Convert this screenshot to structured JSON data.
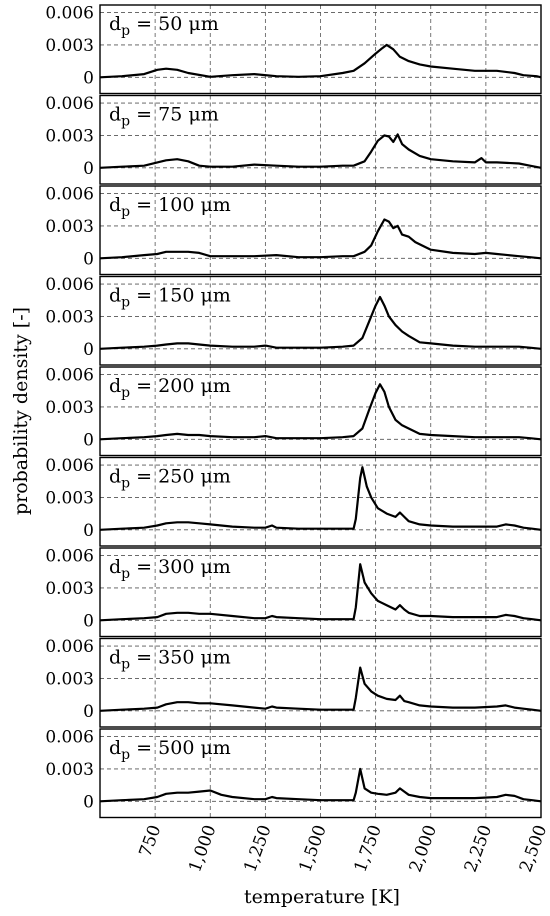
{
  "chart_data": {
    "type": "line",
    "ylabel": "probability density [-]",
    "xlabel": "temperature [K]",
    "xlim": [
      500,
      2500
    ],
    "ylim": [
      -0.0015,
      0.0067
    ],
    "x_ticks": [
      750,
      1000,
      1250,
      1500,
      1750,
      2000,
      2250,
      2500
    ],
    "x_tick_labels": [
      "750",
      "1,000",
      "1,250",
      "1,500",
      "1,750",
      "2,000",
      "2,250",
      "2,500"
    ],
    "y_ticks": [
      0,
      0.003,
      0.006
    ],
    "y_tick_labels": [
      "0",
      "0.003",
      "0.006"
    ],
    "grid": true,
    "panels": [
      {
        "label_main": "d",
        "label_sub": "p",
        "label_rest": " = 50 μm",
        "x": [
          500,
          600,
          700,
          760,
          800,
          850,
          900,
          1000,
          1100,
          1200,
          1300,
          1400,
          1500,
          1600,
          1650,
          1700,
          1750,
          1780,
          1800,
          1830,
          1860,
          1900,
          1950,
          2000,
          2100,
          2200,
          2300,
          2380,
          2420,
          2480,
          2500
        ],
        "y": [
          0,
          0.0001,
          0.0003,
          0.0007,
          0.0008,
          0.0007,
          0.0004,
          5e-05,
          0.0002,
          0.0003,
          0.0001,
          5e-05,
          0.0001,
          0.0004,
          0.0006,
          0.0013,
          0.0022,
          0.0027,
          0.003,
          0.0026,
          0.0019,
          0.0015,
          0.0012,
          0.001,
          0.0008,
          0.0006,
          0.0006,
          0.0004,
          0.0002,
          0.0001,
          0
        ]
      },
      {
        "label_main": "d",
        "label_sub": "p",
        "label_rest": " = 75 μm",
        "x": [
          500,
          600,
          700,
          760,
          800,
          850,
          900,
          950,
          1000,
          1100,
          1200,
          1300,
          1400,
          1500,
          1600,
          1650,
          1700,
          1730,
          1760,
          1790,
          1810,
          1830,
          1850,
          1870,
          1900,
          1950,
          2000,
          2100,
          2200,
          2230,
          2250,
          2300,
          2400,
          2450,
          2500
        ],
        "y": [
          0,
          0.0001,
          0.0002,
          0.0005,
          0.0007,
          0.0008,
          0.0006,
          0.0002,
          0.0001,
          0.0001,
          0.0003,
          0.0002,
          0.0001,
          0.0001,
          0.0002,
          0.0002,
          0.0006,
          0.0015,
          0.0025,
          0.003,
          0.0029,
          0.0024,
          0.0031,
          0.0022,
          0.0017,
          0.0011,
          0.0008,
          0.0006,
          0.0005,
          0.0009,
          0.0005,
          0.0005,
          0.0004,
          0.0002,
          0
        ]
      },
      {
        "label_main": "d",
        "label_sub": "p",
        "label_rest": " = 100 μm",
        "x": [
          500,
          600,
          700,
          760,
          800,
          850,
          900,
          950,
          1000,
          1100,
          1200,
          1300,
          1400,
          1500,
          1600,
          1650,
          1700,
          1730,
          1760,
          1790,
          1810,
          1830,
          1850,
          1870,
          1900,
          1930,
          1960,
          2000,
          2100,
          2200,
          2250,
          2300,
          2400,
          2450,
          2500
        ],
        "y": [
          0,
          0.0001,
          0.0003,
          0.0004,
          0.0006,
          0.0006,
          0.0006,
          0.0005,
          0.0002,
          0.0002,
          0.0002,
          0.0003,
          0.0001,
          0.0001,
          0.0002,
          0.0002,
          0.0006,
          0.0012,
          0.0025,
          0.0036,
          0.0034,
          0.0028,
          0.003,
          0.0022,
          0.002,
          0.0015,
          0.0012,
          0.0008,
          0.0005,
          0.0004,
          0.0005,
          0.0004,
          0.0002,
          0.0001,
          0
        ]
      },
      {
        "label_main": "d",
        "label_sub": "p",
        "label_rest": " = 150 μm",
        "x": [
          500,
          600,
          700,
          760,
          800,
          850,
          900,
          950,
          1000,
          1100,
          1200,
          1250,
          1300,
          1400,
          1500,
          1600,
          1650,
          1690,
          1720,
          1750,
          1770,
          1790,
          1810,
          1840,
          1870,
          1900,
          1950,
          2000,
          2100,
          2200,
          2300,
          2400,
          2450,
          2500
        ],
        "y": [
          0,
          0.0001,
          0.0002,
          0.0003,
          0.0004,
          0.0005,
          0.0005,
          0.0004,
          0.0003,
          0.0002,
          0.0002,
          0.0003,
          0.0001,
          0.0001,
          0.0001,
          0.0002,
          0.0003,
          0.001,
          0.0025,
          0.004,
          0.0048,
          0.004,
          0.003,
          0.0022,
          0.0016,
          0.0012,
          0.0006,
          0.0005,
          0.0003,
          0.0002,
          0.0002,
          0.0002,
          0.0001,
          0
        ]
      },
      {
        "label_main": "d",
        "label_sub": "p",
        "label_rest": " = 200 μm",
        "x": [
          500,
          600,
          700,
          760,
          800,
          850,
          900,
          950,
          1000,
          1100,
          1200,
          1250,
          1300,
          1400,
          1500,
          1600,
          1650,
          1690,
          1720,
          1750,
          1770,
          1790,
          1810,
          1840,
          1870,
          1900,
          1950,
          2000,
          2100,
          2200,
          2300,
          2400,
          2450,
          2500
        ],
        "y": [
          0,
          0.0001,
          0.0002,
          0.0003,
          0.0004,
          0.0005,
          0.0004,
          0.0004,
          0.0003,
          0.0002,
          0.0002,
          0.0003,
          0.0001,
          0.0001,
          0.0001,
          0.0002,
          0.0003,
          0.001,
          0.0027,
          0.0043,
          0.0051,
          0.0044,
          0.003,
          0.0018,
          0.0013,
          0.001,
          0.0005,
          0.0004,
          0.0003,
          0.0002,
          0.0002,
          0.0002,
          0.0001,
          0
        ]
      },
      {
        "label_main": "d",
        "label_sub": "p",
        "label_rest": " = 250 μm",
        "x": [
          500,
          600,
          700,
          760,
          800,
          850,
          900,
          950,
          1000,
          1100,
          1200,
          1250,
          1280,
          1300,
          1400,
          1500,
          1600,
          1650,
          1660,
          1680,
          1690,
          1710,
          1730,
          1760,
          1800,
          1840,
          1860,
          1880,
          1900,
          1950,
          2000,
          2100,
          2200,
          2300,
          2340,
          2380,
          2420,
          2460,
          2500
        ],
        "y": [
          0,
          0.0001,
          0.0002,
          0.0004,
          0.0006,
          0.0007,
          0.0007,
          0.0006,
          0.0005,
          0.0003,
          0.0002,
          0.0002,
          0.0004,
          0.0002,
          0.0001,
          0.0001,
          0.0001,
          0.0001,
          0.001,
          0.0048,
          0.0058,
          0.004,
          0.003,
          0.002,
          0.0015,
          0.0012,
          0.0016,
          0.0012,
          0.0008,
          0.0005,
          0.0004,
          0.0003,
          0.0003,
          0.0003,
          0.0005,
          0.0004,
          0.0002,
          0.0001,
          0
        ]
      },
      {
        "label_main": "d",
        "label_sub": "p",
        "label_rest": " = 300 μm",
        "x": [
          500,
          600,
          700,
          760,
          800,
          850,
          900,
          950,
          1000,
          1100,
          1200,
          1250,
          1280,
          1300,
          1400,
          1500,
          1600,
          1650,
          1660,
          1680,
          1700,
          1730,
          1760,
          1800,
          1840,
          1860,
          1880,
          1900,
          1950,
          2000,
          2100,
          2200,
          2300,
          2340,
          2380,
          2420,
          2460,
          2500
        ],
        "y": [
          0,
          0.0001,
          0.0002,
          0.0003,
          0.0006,
          0.0007,
          0.0007,
          0.0006,
          0.0006,
          0.0004,
          0.0002,
          0.0002,
          0.0004,
          0.0003,
          0.0002,
          0.0001,
          0.0001,
          0.0001,
          0.0012,
          0.0052,
          0.0035,
          0.0025,
          0.0018,
          0.0014,
          0.001,
          0.0014,
          0.001,
          0.0007,
          0.0004,
          0.0004,
          0.0003,
          0.0003,
          0.0003,
          0.0005,
          0.0004,
          0.0002,
          0.0001,
          0
        ]
      },
      {
        "label_main": "d",
        "label_sub": "p",
        "label_rest": " = 350 μm",
        "x": [
          500,
          600,
          700,
          760,
          800,
          850,
          900,
          950,
          1000,
          1100,
          1200,
          1250,
          1280,
          1300,
          1400,
          1500,
          1600,
          1650,
          1660,
          1680,
          1700,
          1730,
          1760,
          1800,
          1840,
          1860,
          1880,
          1900,
          1950,
          2000,
          2100,
          2200,
          2300,
          2340,
          2380,
          2420,
          2460,
          2500
        ],
        "y": [
          0,
          0.0001,
          0.0002,
          0.0003,
          0.0006,
          0.0008,
          0.0008,
          0.0007,
          0.0007,
          0.0005,
          0.0003,
          0.0002,
          0.0004,
          0.0003,
          0.0002,
          0.0001,
          0.0001,
          0.0001,
          0.0012,
          0.004,
          0.0025,
          0.0018,
          0.0014,
          0.0011,
          0.001,
          0.0014,
          0.0009,
          0.0008,
          0.0005,
          0.0004,
          0.0003,
          0.0003,
          0.0004,
          0.0005,
          0.0003,
          0.0002,
          0.0001,
          0
        ]
      },
      {
        "label_main": "d",
        "label_sub": "p",
        "label_rest": " = 500 μm",
        "x": [
          500,
          600,
          700,
          760,
          800,
          850,
          900,
          950,
          1000,
          1050,
          1100,
          1200,
          1250,
          1280,
          1300,
          1400,
          1500,
          1600,
          1650,
          1660,
          1680,
          1700,
          1730,
          1760,
          1800,
          1840,
          1860,
          1880,
          1900,
          1950,
          2000,
          2100,
          2200,
          2300,
          2340,
          2380,
          2420,
          2460,
          2500
        ],
        "y": [
          0,
          0.0001,
          0.0002,
          0.0004,
          0.0007,
          0.0008,
          0.0008,
          0.0009,
          0.001,
          0.0006,
          0.0004,
          0.0002,
          0.0002,
          0.0004,
          0.0003,
          0.0002,
          0.0001,
          0.0001,
          0.0001,
          0.0008,
          0.003,
          0.0012,
          0.0008,
          0.0007,
          0.0006,
          0.0008,
          0.0012,
          0.0009,
          0.0006,
          0.0004,
          0.0003,
          0.0003,
          0.0003,
          0.0004,
          0.0006,
          0.0005,
          0.0002,
          0.0001,
          0
        ]
      }
    ]
  }
}
